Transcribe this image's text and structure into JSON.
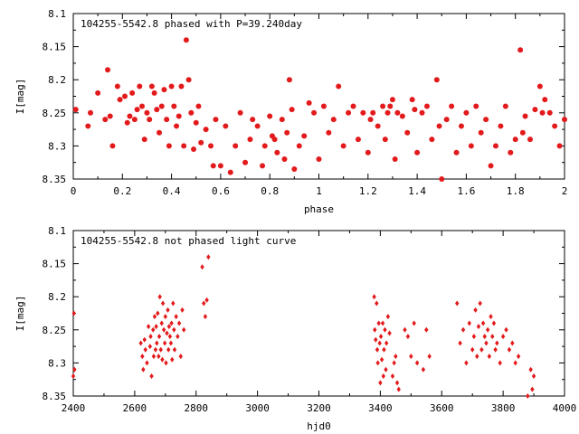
{
  "chart_data": [
    {
      "type": "scatter",
      "title": "104255-5542.8 phased with P=39.240day",
      "xlabel": "phase",
      "ylabel": "I[mag]",
      "xlim": [
        0,
        2
      ],
      "ylim": [
        8.35,
        8.1
      ],
      "y_inverted": true,
      "grid": false,
      "legend": "none",
      "color": "#e31a1c",
      "marker": "filled-circle",
      "x_ticks": [
        "0",
        "0.2",
        "0.4",
        "0.6",
        "0.8",
        "1",
        "1.2",
        "1.4",
        "1.6",
        "1.8",
        "2"
      ],
      "y_ticks": [
        "8.1",
        "8.15",
        "8.2",
        "8.25",
        "8.3",
        "8.35"
      ],
      "series": [
        {
          "x": [
            0.01,
            0.06,
            0.07,
            0.1,
            0.13,
            0.14,
            0.15,
            0.16,
            0.18,
            0.19,
            0.21,
            0.22,
            0.23,
            0.24,
            0.25,
            0.26,
            0.27,
            0.28,
            0.29,
            0.3,
            0.31,
            0.32,
            0.33,
            0.34,
            0.35,
            0.36,
            0.37,
            0.38,
            0.39,
            0.4,
            0.41,
            0.42,
            0.43,
            0.44,
            0.45,
            0.46,
            0.47,
            0.48,
            0.49,
            0.5,
            0.51,
            0.52,
            0.54,
            0.56,
            0.57,
            0.58,
            0.6,
            0.62,
            0.64,
            0.66,
            0.68,
            0.7,
            0.72,
            0.73,
            0.75,
            0.77,
            0.78,
            0.8,
            0.81,
            0.82,
            0.83,
            0.85,
            0.86,
            0.87,
            0.88,
            0.89,
            0.9,
            0.92,
            0.94,
            0.96,
            0.98,
            1.0,
            1.02,
            1.04,
            1.06,
            1.08,
            1.1,
            1.12,
            1.14,
            1.16,
            1.18,
            1.2,
            1.21,
            1.22,
            1.24,
            1.26,
            1.27,
            1.28,
            1.29,
            1.3,
            1.31,
            1.32,
            1.34,
            1.36,
            1.38,
            1.39,
            1.4,
            1.42,
            1.44,
            1.46,
            1.48,
            1.49,
            1.5,
            1.52,
            1.54,
            1.56,
            1.58,
            1.6,
            1.62,
            1.64,
            1.66,
            1.68,
            1.7,
            1.72,
            1.74,
            1.76,
            1.78,
            1.8,
            1.82,
            1.83,
            1.84,
            1.86,
            1.88,
            1.9,
            1.91,
            1.92,
            1.94,
            1.96,
            1.98,
            2.0
          ],
          "y": [
            8.245,
            8.27,
            8.25,
            8.22,
            8.26,
            8.185,
            8.255,
            8.3,
            8.21,
            8.23,
            8.225,
            8.265,
            8.255,
            8.22,
            8.26,
            8.245,
            8.21,
            8.24,
            8.29,
            8.25,
            8.26,
            8.21,
            8.22,
            8.245,
            8.28,
            8.24,
            8.215,
            8.26,
            8.3,
            8.21,
            8.24,
            8.27,
            8.255,
            8.21,
            8.3,
            8.14,
            8.2,
            8.25,
            8.305,
            8.265,
            8.24,
            8.295,
            8.275,
            8.3,
            8.33,
            8.26,
            8.33,
            8.27,
            8.34,
            8.3,
            8.25,
            8.325,
            8.29,
            8.26,
            8.27,
            8.33,
            8.3,
            8.255,
            8.285,
            8.29,
            8.31,
            8.26,
            8.32,
            8.28,
            8.2,
            8.245,
            8.335,
            8.3,
            8.285,
            8.235,
            8.25,
            8.32,
            8.24,
            8.28,
            8.26,
            8.21,
            8.3,
            8.25,
            8.24,
            8.29,
            8.25,
            8.31,
            8.26,
            8.25,
            8.27,
            8.24,
            8.29,
            8.25,
            8.24,
            8.23,
            8.32,
            8.25,
            8.255,
            8.28,
            8.23,
            8.245,
            8.31,
            8.25,
            8.24,
            8.29,
            8.2,
            8.27,
            8.35,
            8.26,
            8.24,
            8.31,
            8.27,
            8.25,
            8.3,
            8.24,
            8.28,
            8.26,
            8.33,
            8.3,
            8.27,
            8.24,
            8.31,
            8.29,
            8.155,
            8.28,
            8.255,
            8.29,
            8.245,
            8.21,
            8.25,
            8.23,
            8.25,
            8.27,
            8.3,
            8.26
          ]
        }
      ]
    },
    {
      "type": "scatter",
      "title": "104255-5542.8 not phased light curve",
      "xlabel": "hjd0",
      "ylabel": "I[mag]",
      "xlim": [
        2400,
        4000
      ],
      "ylim": [
        8.35,
        8.1
      ],
      "y_inverted": true,
      "grid": false,
      "legend": "none",
      "color": "#e31a1c",
      "marker": "small-diamond",
      "x_ticks": [
        "2400",
        "2600",
        "2800",
        "3000",
        "3200",
        "3400",
        "3600",
        "3800",
        "4000"
      ],
      "y_ticks": [
        "8.1",
        "8.15",
        "8.2",
        "8.25",
        "8.3",
        "8.35"
      ],
      "series": [
        {
          "x": [
            2400,
            2402,
            2404,
            2620,
            2625,
            2628,
            2632,
            2635,
            2640,
            2645,
            2650,
            2652,
            2655,
            2660,
            2662,
            2665,
            2668,
            2670,
            2672,
            2675,
            2678,
            2680,
            2682,
            2685,
            2688,
            2690,
            2692,
            2695,
            2698,
            2700,
            2702,
            2705,
            2708,
            2710,
            2712,
            2715,
            2718,
            2720,
            2722,
            2725,
            2728,
            2730,
            2735,
            2740,
            2745,
            2750,
            2755,
            2760,
            2820,
            2825,
            2830,
            2835,
            2840,
            3380,
            3382,
            3385,
            3388,
            3390,
            3392,
            3395,
            3398,
            3400,
            3402,
            3405,
            3408,
            3410,
            3412,
            3415,
            3418,
            3420,
            3425,
            3430,
            3440,
            3445,
            3450,
            3455,
            3460,
            3480,
            3490,
            3500,
            3510,
            3520,
            3540,
            3550,
            3560,
            3650,
            3660,
            3670,
            3680,
            3690,
            3700,
            3705,
            3710,
            3715,
            3720,
            3725,
            3730,
            3735,
            3740,
            3745,
            3750,
            3755,
            3760,
            3765,
            3770,
            3775,
            3780,
            3790,
            3800,
            3810,
            3820,
            3830,
            3840,
            3850,
            3880,
            3890,
            3895,
            3900
          ],
          "y": [
            8.32,
            8.225,
            8.31,
            8.27,
            8.29,
            8.31,
            8.265,
            8.28,
            8.3,
            8.245,
            8.275,
            8.26,
            8.32,
            8.25,
            8.29,
            8.23,
            8.28,
            8.245,
            8.27,
            8.225,
            8.29,
            8.26,
            8.2,
            8.28,
            8.24,
            8.295,
            8.21,
            8.25,
            8.27,
            8.23,
            8.3,
            8.255,
            8.22,
            8.28,
            8.245,
            8.26,
            8.27,
            8.24,
            8.295,
            8.21,
            8.25,
            8.28,
            8.23,
            8.26,
            8.24,
            8.29,
            8.22,
            8.25,
            8.155,
            8.21,
            8.23,
            8.205,
            8.14,
            8.2,
            8.25,
            8.265,
            8.21,
            8.28,
            8.3,
            8.24,
            8.27,
            8.33,
            8.26,
            8.295,
            8.24,
            8.32,
            8.28,
            8.25,
            8.31,
            8.27,
            8.23,
            8.255,
            8.32,
            8.3,
            8.29,
            8.33,
            8.34,
            8.25,
            8.26,
            8.29,
            8.24,
            8.3,
            8.31,
            8.25,
            8.29,
            8.21,
            8.27,
            8.25,
            8.3,
            8.24,
            8.28,
            8.26,
            8.22,
            8.29,
            8.245,
            8.21,
            8.28,
            8.24,
            8.26,
            8.27,
            8.25,
            8.29,
            8.23,
            8.26,
            8.24,
            8.28,
            8.27,
            8.3,
            8.26,
            8.25,
            8.28,
            8.27,
            8.3,
            8.29,
            8.35,
            8.31,
            8.34,
            8.32
          ]
        }
      ]
    }
  ]
}
